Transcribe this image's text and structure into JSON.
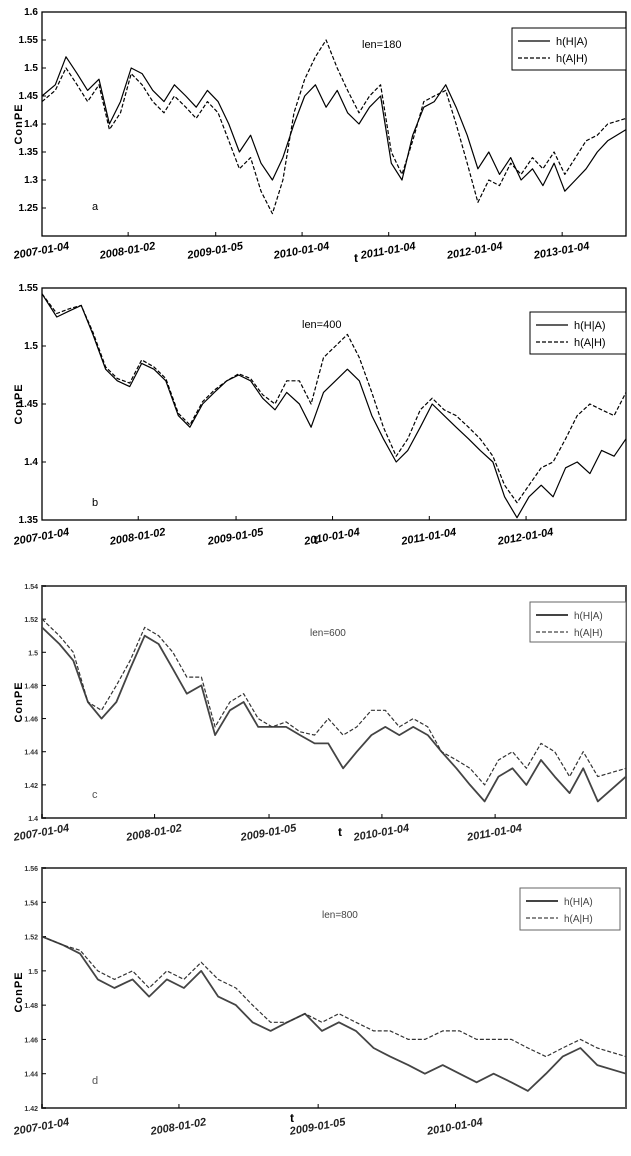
{
  "chart_data": [
    {
      "type": "line",
      "panel": "a",
      "annotation": "len=180",
      "ylabel": "ConPE",
      "xlabel": "t",
      "ylim": [
        1.2,
        1.6
      ],
      "yticks": [
        1.25,
        1.3,
        1.35,
        1.4,
        1.45,
        1.5,
        1.55,
        1.6
      ],
      "ytick_labels": [
        "1.25",
        "1.3",
        "1.35",
        "1.4",
        "1.45",
        "1.5",
        "1.55",
        "1.6"
      ],
      "xlim": [
        "2007-01-04",
        "2013-09-30"
      ],
      "xtick_labels": [
        "2007-01-04",
        "2008-01-02",
        "2009-01-05",
        "2010-01-04",
        "2011-01-04",
        "2012-01-04",
        "2013-01-04"
      ],
      "legend": "top-right",
      "series": [
        {
          "name": "h(H|A)",
          "style": "solid",
          "x": [
            "2007-01-04",
            "2007-03-01",
            "2007-04-15",
            "2007-06-01",
            "2007-07-15",
            "2007-09-01",
            "2007-10-15",
            "2007-12-01",
            "2008-01-15",
            "2008-03-01",
            "2008-04-15",
            "2008-06-01",
            "2008-07-15",
            "2008-09-01",
            "2008-10-15",
            "2008-12-01",
            "2009-01-15",
            "2009-03-01",
            "2009-04-15",
            "2009-06-01",
            "2009-07-15",
            "2009-09-01",
            "2009-10-15",
            "2009-12-01",
            "2010-01-15",
            "2010-03-01",
            "2010-04-15",
            "2010-06-01",
            "2010-07-15",
            "2010-09-01",
            "2010-10-15",
            "2010-12-01",
            "2011-01-15",
            "2011-03-01",
            "2011-04-15",
            "2011-06-01",
            "2011-07-15",
            "2011-09-01",
            "2011-10-15",
            "2011-12-01",
            "2012-01-15",
            "2012-03-01",
            "2012-04-15",
            "2012-06-01",
            "2012-07-15",
            "2012-09-01",
            "2012-10-15",
            "2012-12-01",
            "2013-01-15",
            "2013-03-01",
            "2013-04-15",
            "2013-06-01",
            "2013-07-15",
            "2013-09-30"
          ],
          "values": [
            1.45,
            1.47,
            1.52,
            1.49,
            1.46,
            1.48,
            1.4,
            1.44,
            1.5,
            1.49,
            1.46,
            1.44,
            1.47,
            1.45,
            1.43,
            1.46,
            1.44,
            1.4,
            1.35,
            1.38,
            1.33,
            1.3,
            1.34,
            1.4,
            1.45,
            1.47,
            1.43,
            1.46,
            1.42,
            1.4,
            1.43,
            1.45,
            1.33,
            1.3,
            1.38,
            1.43,
            1.44,
            1.47,
            1.43,
            1.38,
            1.32,
            1.35,
            1.31,
            1.34,
            1.3,
            1.32,
            1.29,
            1.33,
            1.28,
            1.3,
            1.32,
            1.35,
            1.37,
            1.39
          ]
        },
        {
          "name": "h(A|H)",
          "style": "dashed",
          "x": [
            "2007-01-04",
            "2007-03-01",
            "2007-04-15",
            "2007-06-01",
            "2007-07-15",
            "2007-09-01",
            "2007-10-15",
            "2007-12-01",
            "2008-01-15",
            "2008-03-01",
            "2008-04-15",
            "2008-06-01",
            "2008-07-15",
            "2008-09-01",
            "2008-10-15",
            "2008-12-01",
            "2009-01-15",
            "2009-03-01",
            "2009-04-15",
            "2009-06-01",
            "2009-07-15",
            "2009-09-01",
            "2009-10-15",
            "2009-12-01",
            "2010-01-15",
            "2010-03-01",
            "2010-04-15",
            "2010-06-01",
            "2010-07-15",
            "2010-09-01",
            "2010-10-15",
            "2010-12-01",
            "2011-01-15",
            "2011-03-01",
            "2011-04-15",
            "2011-06-01",
            "2011-07-15",
            "2011-09-01",
            "2011-10-15",
            "2011-12-01",
            "2012-01-15",
            "2012-03-01",
            "2012-04-15",
            "2012-06-01",
            "2012-07-15",
            "2012-09-01",
            "2012-10-15",
            "2012-12-01",
            "2013-01-15",
            "2013-03-01",
            "2013-04-15",
            "2013-06-01",
            "2013-07-15",
            "2013-09-30"
          ],
          "values": [
            1.44,
            1.46,
            1.5,
            1.47,
            1.44,
            1.47,
            1.39,
            1.42,
            1.49,
            1.47,
            1.44,
            1.42,
            1.45,
            1.43,
            1.41,
            1.44,
            1.42,
            1.37,
            1.32,
            1.34,
            1.28,
            1.24,
            1.3,
            1.42,
            1.48,
            1.52,
            1.55,
            1.5,
            1.46,
            1.42,
            1.45,
            1.47,
            1.35,
            1.31,
            1.37,
            1.44,
            1.45,
            1.46,
            1.4,
            1.33,
            1.26,
            1.3,
            1.29,
            1.33,
            1.31,
            1.34,
            1.32,
            1.35,
            1.31,
            1.34,
            1.37,
            1.38,
            1.4,
            1.41
          ]
        }
      ]
    },
    {
      "type": "line",
      "panel": "b",
      "annotation": "len=400",
      "ylabel": "ConPE",
      "xlabel": "t",
      "ylim": [
        1.35,
        1.55
      ],
      "yticks": [
        1.35,
        1.4,
        1.45,
        1.5,
        1.55
      ],
      "ytick_labels": [
        "1.35",
        "1.4",
        "1.45",
        "1.5",
        "1.55"
      ],
      "xlim": [
        "2007-01-04",
        "2013-01-15"
      ],
      "xtick_labels": [
        "2007-01-04",
        "2008-01-02",
        "2009-01-05",
        "2010-01-04",
        "2011-01-04",
        "2012-01-04"
      ],
      "legend": "top-right",
      "series": [
        {
          "name": "h(H|A)",
          "style": "solid",
          "x": [
            "2007-01-04",
            "2007-03-01",
            "2007-04-15",
            "2007-06-01",
            "2007-07-15",
            "2007-09-01",
            "2007-10-15",
            "2007-12-01",
            "2008-01-15",
            "2008-03-01",
            "2008-04-15",
            "2008-06-01",
            "2008-07-15",
            "2008-09-01",
            "2008-10-15",
            "2008-12-01",
            "2009-01-15",
            "2009-03-01",
            "2009-04-15",
            "2009-06-01",
            "2009-07-15",
            "2009-09-01",
            "2009-10-15",
            "2009-12-01",
            "2010-01-15",
            "2010-03-01",
            "2010-04-15",
            "2010-06-01",
            "2010-07-15",
            "2010-09-01",
            "2010-10-15",
            "2010-12-01",
            "2011-01-15",
            "2011-03-01",
            "2011-04-15",
            "2011-06-01",
            "2011-07-15",
            "2011-09-01",
            "2011-10-15",
            "2011-12-01",
            "2012-01-15",
            "2012-03-01",
            "2012-04-15",
            "2012-06-01",
            "2012-07-15",
            "2012-09-01",
            "2012-10-15",
            "2012-12-01",
            "2013-01-15"
          ],
          "values": [
            1.545,
            1.525,
            1.53,
            1.535,
            1.51,
            1.48,
            1.47,
            1.465,
            1.485,
            1.48,
            1.47,
            1.44,
            1.43,
            1.45,
            1.46,
            1.47,
            1.475,
            1.47,
            1.455,
            1.445,
            1.46,
            1.45,
            1.43,
            1.46,
            1.47,
            1.48,
            1.47,
            1.44,
            1.42,
            1.4,
            1.41,
            1.43,
            1.45,
            1.44,
            1.43,
            1.42,
            1.41,
            1.4,
            1.37,
            1.352,
            1.37,
            1.38,
            1.37,
            1.395,
            1.4,
            1.39,
            1.41,
            1.405,
            1.42
          ]
        },
        {
          "name": "h(A|H)",
          "style": "dashed",
          "x": [
            "2007-01-04",
            "2007-03-01",
            "2007-04-15",
            "2007-06-01",
            "2007-07-15",
            "2007-09-01",
            "2007-10-15",
            "2007-12-01",
            "2008-01-15",
            "2008-03-01",
            "2008-04-15",
            "2008-06-01",
            "2008-07-15",
            "2008-09-01",
            "2008-10-15",
            "2008-12-01",
            "2009-01-15",
            "2009-03-01",
            "2009-04-15",
            "2009-06-01",
            "2009-07-15",
            "2009-09-01",
            "2009-10-15",
            "2009-12-01",
            "2010-01-15",
            "2010-03-01",
            "2010-04-15",
            "2010-06-01",
            "2010-07-15",
            "2010-09-01",
            "2010-10-15",
            "2010-12-01",
            "2011-01-15",
            "2011-03-01",
            "2011-04-15",
            "2011-06-01",
            "2011-07-15",
            "2011-09-01",
            "2011-10-15",
            "2011-12-01",
            "2012-01-15",
            "2012-03-01",
            "2012-04-15",
            "2012-06-01",
            "2012-07-15",
            "2012-09-01",
            "2012-10-15",
            "2012-12-01",
            "2013-01-15"
          ],
          "values": [
            1.545,
            1.528,
            1.532,
            1.535,
            1.512,
            1.482,
            1.472,
            1.468,
            1.488,
            1.482,
            1.472,
            1.442,
            1.432,
            1.452,
            1.462,
            1.47,
            1.476,
            1.472,
            1.458,
            1.45,
            1.47,
            1.47,
            1.45,
            1.49,
            1.5,
            1.51,
            1.49,
            1.46,
            1.43,
            1.405,
            1.42,
            1.445,
            1.455,
            1.445,
            1.44,
            1.43,
            1.42,
            1.405,
            1.38,
            1.365,
            1.38,
            1.395,
            1.4,
            1.42,
            1.44,
            1.45,
            1.445,
            1.44,
            1.46
          ]
        }
      ]
    },
    {
      "type": "line",
      "panel": "c",
      "annotation": "len=600",
      "ylabel": "ConPE",
      "xlabel": "t",
      "ylim": [
        1.4,
        1.54
      ],
      "yticks": [
        1.4,
        1.42,
        1.44,
        1.46,
        1.48,
        1.5,
        1.52,
        1.54
      ],
      "ytick_labels": [
        "1.4",
        "1.42",
        "1.44",
        "1.46",
        "1.48",
        "1.5",
        "1.52",
        "1.54"
      ],
      "xlim": [
        "2007-01-04",
        "2012-03-01"
      ],
      "xtick_labels": [
        "2007-01-04",
        "2008-01-02",
        "2009-01-05",
        "2010-01-04",
        "2011-01-04"
      ],
      "legend": "top-right",
      "series": [
        {
          "name": "h(H|A)",
          "style": "solid",
          "x": [
            "2007-01-04",
            "2007-03-01",
            "2007-04-15",
            "2007-06-01",
            "2007-07-15",
            "2007-09-01",
            "2007-10-15",
            "2007-12-01",
            "2008-01-15",
            "2008-03-01",
            "2008-04-15",
            "2008-06-01",
            "2008-07-15",
            "2008-09-01",
            "2008-10-15",
            "2008-12-01",
            "2009-01-15",
            "2009-03-01",
            "2009-04-15",
            "2009-06-01",
            "2009-07-15",
            "2009-09-01",
            "2009-10-15",
            "2009-12-01",
            "2010-01-15",
            "2010-03-01",
            "2010-04-15",
            "2010-06-01",
            "2010-07-15",
            "2010-09-01",
            "2010-10-15",
            "2010-12-01",
            "2011-01-15",
            "2011-03-01",
            "2011-04-15",
            "2011-06-01",
            "2011-07-15",
            "2011-09-01",
            "2011-10-15",
            "2011-12-01",
            "2012-03-01"
          ],
          "values": [
            1.515,
            1.505,
            1.495,
            1.47,
            1.46,
            1.47,
            1.49,
            1.51,
            1.505,
            1.49,
            1.475,
            1.48,
            1.45,
            1.465,
            1.47,
            1.455,
            1.455,
            1.455,
            1.45,
            1.445,
            1.445,
            1.43,
            1.44,
            1.45,
            1.455,
            1.45,
            1.455,
            1.45,
            1.44,
            1.43,
            1.42,
            1.41,
            1.425,
            1.43,
            1.42,
            1.435,
            1.425,
            1.415,
            1.43,
            1.41,
            1.425
          ]
        },
        {
          "name": "h(A|H)",
          "style": "dashed",
          "x": [
            "2007-01-04",
            "2007-03-01",
            "2007-04-15",
            "2007-06-01",
            "2007-07-15",
            "2007-09-01",
            "2007-10-15",
            "2007-12-01",
            "2008-01-15",
            "2008-03-01",
            "2008-04-15",
            "2008-06-01",
            "2008-07-15",
            "2008-09-01",
            "2008-10-15",
            "2008-12-01",
            "2009-01-15",
            "2009-03-01",
            "2009-04-15",
            "2009-06-01",
            "2009-07-15",
            "2009-09-01",
            "2009-10-15",
            "2009-12-01",
            "2010-01-15",
            "2010-03-01",
            "2010-04-15",
            "2010-06-01",
            "2010-07-15",
            "2010-09-01",
            "2010-10-15",
            "2010-12-01",
            "2011-01-15",
            "2011-03-01",
            "2011-04-15",
            "2011-06-01",
            "2011-07-15",
            "2011-09-01",
            "2011-10-15",
            "2011-12-01",
            "2012-03-01"
          ],
          "values": [
            1.52,
            1.51,
            1.5,
            1.47,
            1.465,
            1.48,
            1.495,
            1.515,
            1.51,
            1.5,
            1.485,
            1.485,
            1.455,
            1.47,
            1.475,
            1.46,
            1.455,
            1.458,
            1.452,
            1.45,
            1.46,
            1.45,
            1.455,
            1.465,
            1.465,
            1.455,
            1.46,
            1.455,
            1.44,
            1.435,
            1.43,
            1.42,
            1.435,
            1.44,
            1.43,
            1.445,
            1.44,
            1.425,
            1.44,
            1.425,
            1.43
          ]
        }
      ]
    },
    {
      "type": "line",
      "panel": "d",
      "annotation": "len=800",
      "ylabel": "ConPE",
      "xlabel": "t",
      "ylim": [
        1.42,
        1.56
      ],
      "yticks": [
        1.42,
        1.44,
        1.46,
        1.48,
        1.5,
        1.52,
        1.54,
        1.56
      ],
      "ytick_labels": [
        "1.42",
        "1.44",
        "1.46",
        "1.48",
        "1.5",
        "1.52",
        "1.54",
        "1.56"
      ],
      "xlim": [
        "2007-01-04",
        "2011-04-01"
      ],
      "xtick_labels": [
        "2007-01-04",
        "2008-01-02",
        "2009-01-05",
        "2010-01-04"
      ],
      "legend": "top-right",
      "series": [
        {
          "name": "h(H|A)",
          "style": "solid",
          "x": [
            "2007-01-04",
            "2007-03-01",
            "2007-04-15",
            "2007-06-01",
            "2007-07-15",
            "2007-09-01",
            "2007-10-15",
            "2007-12-01",
            "2008-01-15",
            "2008-03-01",
            "2008-04-15",
            "2008-06-01",
            "2008-07-15",
            "2008-09-01",
            "2008-10-15",
            "2008-12-01",
            "2009-01-15",
            "2009-03-01",
            "2009-04-15",
            "2009-06-01",
            "2009-07-15",
            "2009-09-01",
            "2009-10-15",
            "2009-12-01",
            "2010-01-15",
            "2010-03-01",
            "2010-04-15",
            "2010-06-01",
            "2010-07-15",
            "2010-09-01",
            "2010-10-15",
            "2010-12-01",
            "2011-01-15",
            "2011-04-01"
          ],
          "values": [
            1.52,
            1.515,
            1.51,
            1.495,
            1.49,
            1.495,
            1.485,
            1.495,
            1.49,
            1.5,
            1.485,
            1.48,
            1.47,
            1.465,
            1.47,
            1.475,
            1.465,
            1.47,
            1.465,
            1.455,
            1.45,
            1.445,
            1.44,
            1.445,
            1.44,
            1.435,
            1.44,
            1.435,
            1.43,
            1.44,
            1.45,
            1.455,
            1.445,
            1.44
          ]
        },
        {
          "name": "h(A|H)",
          "style": "dashed",
          "x": [
            "2007-01-04",
            "2007-03-01",
            "2007-04-15",
            "2007-06-01",
            "2007-07-15",
            "2007-09-01",
            "2007-10-15",
            "2007-12-01",
            "2008-01-15",
            "2008-03-01",
            "2008-04-15",
            "2008-06-01",
            "2008-07-15",
            "2008-09-01",
            "2008-10-15",
            "2008-12-01",
            "2009-01-15",
            "2009-03-01",
            "2009-04-15",
            "2009-06-01",
            "2009-07-15",
            "2009-09-01",
            "2009-10-15",
            "2009-12-01",
            "2010-01-15",
            "2010-03-01",
            "2010-04-15",
            "2010-06-01",
            "2010-07-15",
            "2010-09-01",
            "2010-10-15",
            "2010-12-01",
            "2011-01-15",
            "2011-04-01"
          ],
          "values": [
            1.52,
            1.515,
            1.512,
            1.5,
            1.495,
            1.5,
            1.49,
            1.5,
            1.495,
            1.505,
            1.495,
            1.49,
            1.48,
            1.47,
            1.47,
            1.475,
            1.47,
            1.475,
            1.47,
            1.465,
            1.465,
            1.46,
            1.46,
            1.465,
            1.465,
            1.46,
            1.46,
            1.46,
            1.455,
            1.45,
            1.455,
            1.46,
            1.455,
            1.45
          ]
        }
      ]
    }
  ]
}
